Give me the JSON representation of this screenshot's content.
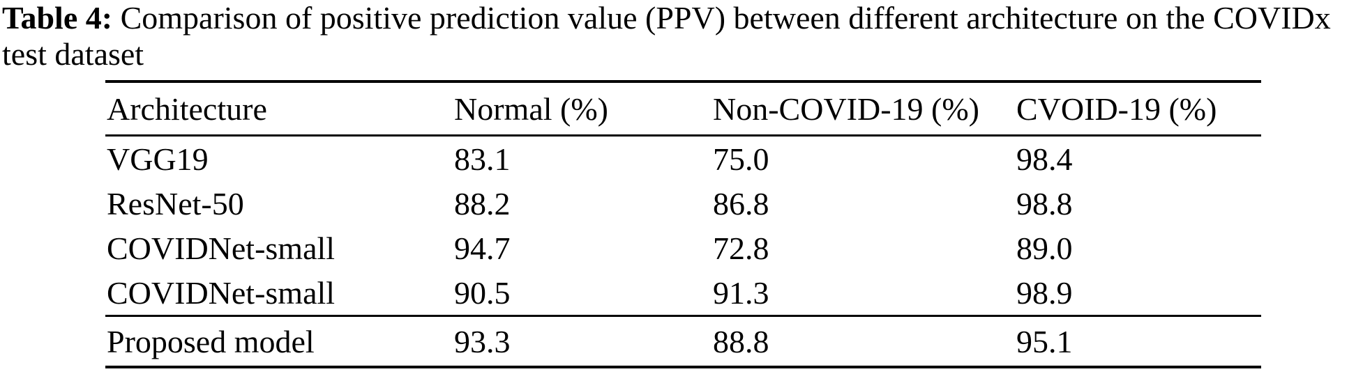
{
  "page": {
    "background": "#ffffff",
    "text_color": "#000000"
  },
  "caption": {
    "label": "Table 4:",
    "line1_rest": "Comparison of positive prediction value (PPV) between different architecture on the COVIDx",
    "line2": "test dataset"
  },
  "table": {
    "columns": {
      "architecture": "Architecture",
      "normal": "Normal (%)",
      "non_covid19": "Non-COVID-19 (%)",
      "covid19": "CVOID-19 (%)"
    },
    "rows": [
      {
        "architecture": "VGG19",
        "normal": "83.1",
        "non_covid19": "75.0",
        "covid19": "98.4"
      },
      {
        "architecture": "ResNet-50",
        "normal": "88.2",
        "non_covid19": "86.8",
        "covid19": "98.8"
      },
      {
        "architecture": "COVIDNet-small",
        "normal": "94.7",
        "non_covid19": "72.8",
        "covid19": "89.0"
      },
      {
        "architecture": "COVIDNet-small",
        "normal": "90.5",
        "non_covid19": "91.3",
        "covid19": "98.9"
      }
    ],
    "footer": {
      "architecture": "Proposed model",
      "normal": "93.3",
      "non_covid19": "88.8",
      "covid19": "95.1"
    }
  }
}
